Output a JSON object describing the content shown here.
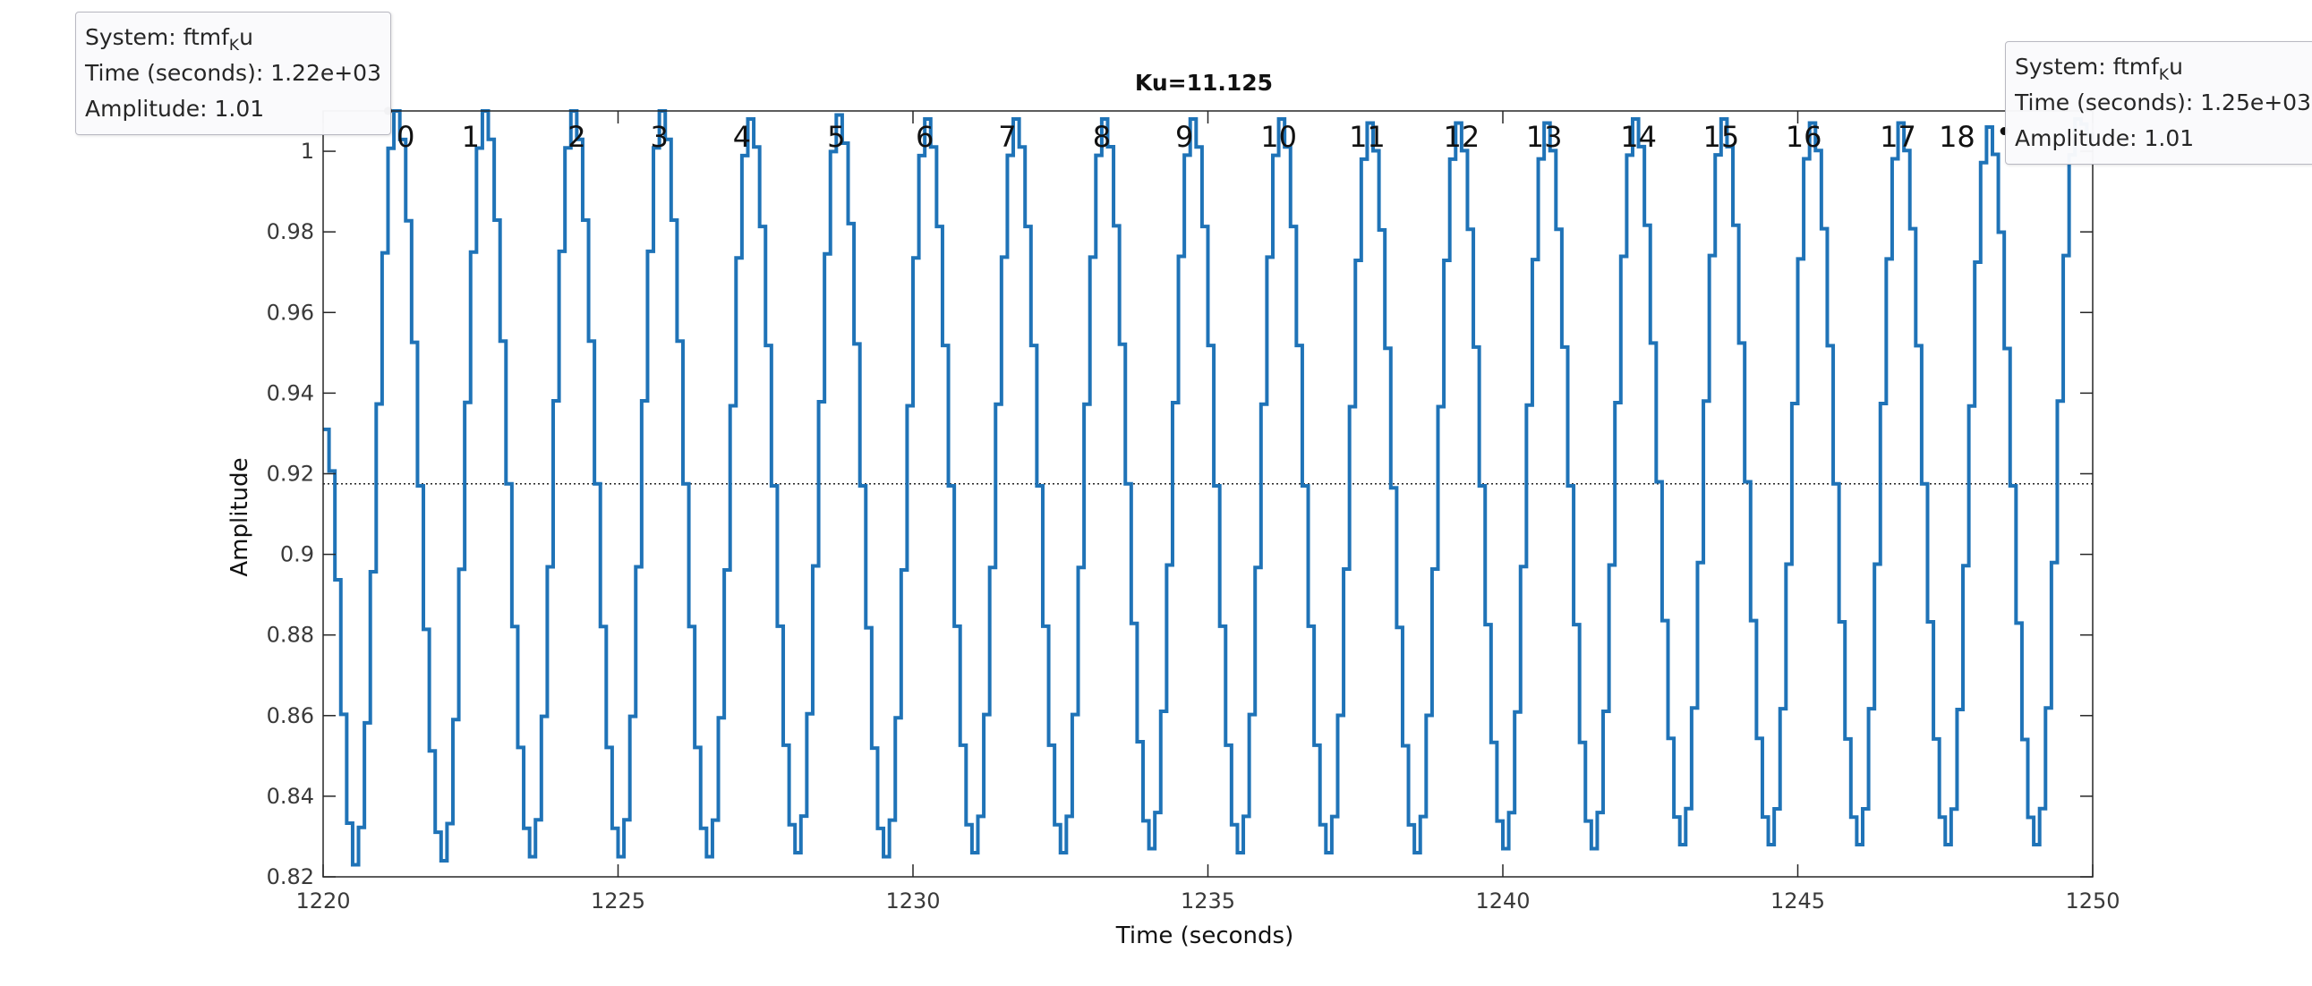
{
  "chart_data": {
    "type": "line",
    "title": "Ku=11.125",
    "xlabel": "Time (seconds)",
    "ylabel": "Amplitude",
    "xlim": [
      1220,
      1250
    ],
    "ylim": [
      0.82,
      1.01
    ],
    "xticks": [
      1220,
      1225,
      1230,
      1235,
      1240,
      1245,
      1250
    ],
    "xtick_labels": [
      "1220",
      "1225",
      "1230",
      "1235",
      "1240",
      "1245",
      "1250"
    ],
    "yticks": [
      0.82,
      0.84,
      0.86,
      0.88,
      0.9,
      0.92,
      0.94,
      0.96,
      0.98,
      1
    ],
    "ytick_labels": [
      "0.82",
      "0.84",
      "0.86",
      "0.88",
      "0.9",
      "0.92",
      "0.94",
      "0.96",
      "0.98",
      "1"
    ],
    "grid": false,
    "line_color": "#1f73b7",
    "reference_line": {
      "y": 0.9175,
      "style": "dotted",
      "color": "#222222"
    },
    "series": [
      {
        "name": "ftmfKu",
        "step": true,
        "peak_times": [
          1221.2,
          1222.7,
          1224.2,
          1225.7,
          1227.2,
          1228.7,
          1230.2,
          1231.7,
          1233.2,
          1234.7,
          1236.2,
          1237.7,
          1239.2,
          1240.7,
          1242.2,
          1243.7,
          1245.2,
          1246.7,
          1248.2,
          1249.7
        ],
        "peak_values": [
          1.01,
          1.01,
          1.01,
          1.01,
          1.008,
          1.009,
          1.008,
          1.008,
          1.008,
          1.008,
          1.008,
          1.007,
          1.007,
          1.007,
          1.008,
          1.008,
          1.007,
          1.007,
          1.006,
          1.008
        ],
        "trough_times": [
          1220.5,
          1222.0,
          1223.5,
          1225.0,
          1226.5,
          1228.0,
          1229.5,
          1231.0,
          1232.5,
          1234.0,
          1235.5,
          1237.0,
          1238.5,
          1240.0,
          1241.5,
          1243.0,
          1244.5,
          1246.0,
          1247.5,
          1249.0
        ],
        "trough_values": [
          0.823,
          0.824,
          0.825,
          0.825,
          0.825,
          0.826,
          0.825,
          0.826,
          0.826,
          0.827,
          0.826,
          0.826,
          0.826,
          0.827,
          0.827,
          0.828,
          0.828,
          0.828,
          0.828,
          0.828
        ],
        "start_value": 0.931
      }
    ],
    "cycle_labels": {
      "values": [
        "0",
        "1",
        "2",
        "3",
        "4",
        "5",
        "6",
        "7",
        "8",
        "9",
        "10",
        "11",
        "12",
        "13",
        "14",
        "15",
        "16",
        "17",
        "18"
      ],
      "times": [
        1221.4,
        1222.5,
        1224.3,
        1225.7,
        1227.1,
        1228.7,
        1230.2,
        1231.6,
        1233.2,
        1234.6,
        1236.2,
        1237.7,
        1239.3,
        1240.7,
        1242.3,
        1243.7,
        1245.1,
        1246.7,
        1247.7
      ]
    },
    "data_tips": [
      {
        "x": 1221.1,
        "y": 1.01
      },
      {
        "x": 1248.5,
        "y": 1.005
      }
    ]
  },
  "tooltips": [
    {
      "system_prefix": "System: ftmf",
      "system_sub": "K",
      "system_suffix": "u",
      "time": "Time (seconds): 1.22e+03",
      "amplitude": "Amplitude: 1.01"
    },
    {
      "system_prefix": "System: ftmf",
      "system_sub": "K",
      "system_suffix": "u",
      "time": "Time (seconds): 1.25e+03",
      "amplitude": "Amplitude: 1.01"
    }
  ]
}
